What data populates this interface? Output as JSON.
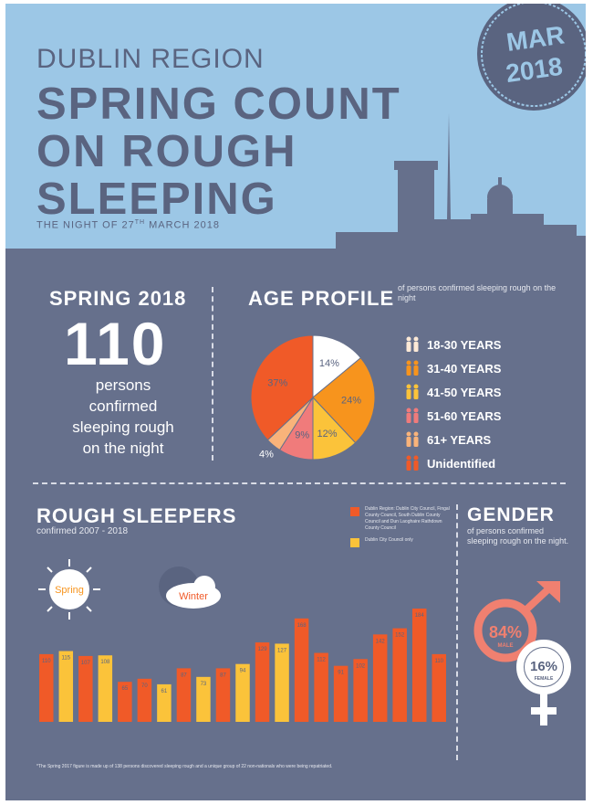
{
  "header": {
    "region": "DUBLIN REGION",
    "title_lines": [
      "SPRING COUNT",
      "ON ROUGH",
      "SLEEPING"
    ],
    "night_prefix": "THE NIGHT OF 27",
    "night_sup": "TH",
    "night_suffix": " MARCH 2018",
    "stamp_month": "MAR",
    "stamp_year": "2018"
  },
  "spring": {
    "heading": "SPRING 2018",
    "count": "110",
    "lines": [
      "persons",
      "confirmed",
      "sleeping rough",
      "on the night"
    ]
  },
  "age": {
    "heading": "AGE PROFILE",
    "subtitle": "of persons confirmed sleeping rough on the night",
    "legend": [
      {
        "label": "18-30 YEARS",
        "color": "#fde9d6"
      },
      {
        "label": "31-40 YEARS",
        "color": "#f7941d"
      },
      {
        "label": "41-50 YEARS",
        "color": "#fbc33a"
      },
      {
        "label": "51-60 YEARS",
        "color": "#f07b7b"
      },
      {
        "label": "61+ YEARS",
        "color": "#f9b37a"
      },
      {
        "label": "Unidentified",
        "color": "#f05a28"
      }
    ]
  },
  "rough": {
    "heading": "ROUGH SLEEPERS",
    "subtitle": "confirmed 2007 - 2018",
    "legend": [
      {
        "text": "Dublin Region: Dublin City Council, Fingal County Council, South Dublin County Council and Dun Laoghaire Rathdown County Council",
        "color": "#f05a28"
      },
      {
        "text": "Dublin City Council only",
        "color": "#fbc33a"
      }
    ],
    "spring_label": "Spring",
    "winter_label": "Winter",
    "footnote": "*The Spring 2017 figure is made up of 138 persons discovered sleeping rough and a unique group of 22 non-nationals who were being repatriated."
  },
  "gender": {
    "heading": "GENDER",
    "subtitle": "of persons confirmed sleeping rough on the night.",
    "male_pct": "84%",
    "male_label": "MALE",
    "female_pct": "16%",
    "female_label": "FEMALE",
    "male_color": "#f08070",
    "female_color": "#ffffff"
  },
  "chart_data": [
    {
      "type": "pie",
      "title": "AGE PROFILE",
      "categories": [
        "18-30 YEARS",
        "31-40 YEARS",
        "41-50 YEARS",
        "51-60 YEARS",
        "61+ YEARS",
        "Unidentified"
      ],
      "values": [
        14,
        24,
        12,
        9,
        4,
        37
      ],
      "labels": [
        "14%",
        "24%",
        "12%",
        "9%",
        "4%",
        "37%"
      ],
      "colors": [
        "#ffffff",
        "#f7941d",
        "#fbc33a",
        "#f07b7b",
        "#f9b37a",
        "#f05a28"
      ]
    },
    {
      "type": "bar",
      "title": "ROUGH SLEEPERS",
      "values": [
        110,
        115,
        107,
        108,
        65,
        70,
        61,
        87,
        73,
        87,
        94,
        129,
        127,
        168,
        112,
        91,
        102,
        142,
        152,
        184,
        110
      ],
      "labels": [
        "110",
        "115",
        "107",
        "108",
        "65",
        "70",
        "61",
        "87",
        "73",
        "87",
        "94",
        "129",
        "127",
        "168",
        "112",
        "91",
        "102",
        "142",
        "152",
        "184",
        "110"
      ],
      "series_color": [
        "#f05a28",
        "#fbc33a",
        "#f05a28",
        "#fbc33a",
        "#f05a28",
        "#f05a28",
        "#fbc33a",
        "#f05a28",
        "#fbc33a",
        "#f05a28",
        "#fbc33a",
        "#f05a28",
        "#fbc33a",
        "#f05a28",
        "#f05a28",
        "#f05a28",
        "#f05a28",
        "#f05a28",
        "#f05a28",
        "#f05a28",
        "#f05a28"
      ],
      "ylim": [
        0,
        190
      ]
    }
  ]
}
